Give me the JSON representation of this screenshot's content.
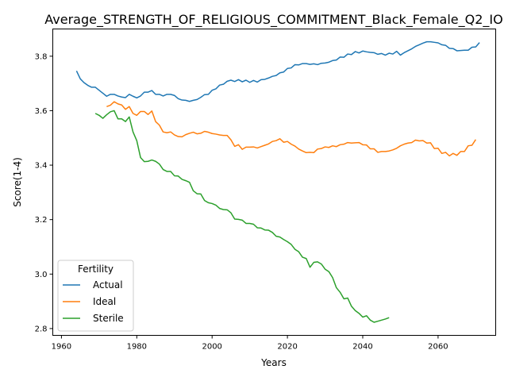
{
  "chart_data": {
    "type": "line",
    "title": "Average_STRENGTH_OF_RELIGIOUS_COMMITMENT_Black_Female_Q2_IO",
    "xlabel": "Years",
    "ylabel": "Score(1-4)",
    "xlim": [
      1957.7,
      2075.3
    ],
    "ylim": [
      2.775,
      3.9
    ],
    "xticks": [
      1960,
      1980,
      2000,
      2020,
      2040,
      2060
    ],
    "yticks": [
      2.8,
      3.0,
      3.2,
      3.4,
      3.6,
      3.8
    ],
    "xtick_labels": [
      "1960",
      "1980",
      "2000",
      "2020",
      "2040",
      "2060"
    ],
    "ytick_labels": [
      "2.8",
      "3.0",
      "3.2",
      "3.4",
      "3.6",
      "3.8"
    ],
    "grid": false,
    "legend": {
      "title": "Fertility",
      "placement": "lower-left"
    },
    "series": [
      {
        "name": "Actual",
        "color": "#1f77b4",
        "points": [
          [
            1964,
            3.746
          ],
          [
            1965,
            3.717
          ],
          [
            1966,
            3.703
          ],
          [
            1967,
            3.693
          ],
          [
            1968,
            3.686
          ],
          [
            1969,
            3.686
          ],
          [
            1970,
            3.675
          ],
          [
            1971,
            3.664
          ],
          [
            1972,
            3.653
          ],
          [
            1973,
            3.66
          ],
          [
            1974,
            3.66
          ],
          [
            1975,
            3.654
          ],
          [
            1976,
            3.65
          ],
          [
            1977,
            3.648
          ],
          [
            1978,
            3.66
          ],
          [
            1979,
            3.653
          ],
          [
            1980,
            3.647
          ],
          [
            1981,
            3.654
          ],
          [
            1982,
            3.668
          ],
          [
            1983,
            3.668
          ],
          [
            1984,
            3.674
          ],
          [
            1985,
            3.66
          ],
          [
            1986,
            3.66
          ],
          [
            1987,
            3.654
          ],
          [
            1988,
            3.66
          ],
          [
            1989,
            3.66
          ],
          [
            1990,
            3.656
          ],
          [
            1991,
            3.644
          ],
          [
            1992,
            3.639
          ],
          [
            1993,
            3.638
          ],
          [
            1994,
            3.634
          ],
          [
            1995,
            3.638
          ],
          [
            1996,
            3.641
          ],
          [
            1997,
            3.649
          ],
          [
            1998,
            3.659
          ],
          [
            1999,
            3.66
          ],
          [
            2000,
            3.675
          ],
          [
            2001,
            3.68
          ],
          [
            2002,
            3.694
          ],
          [
            2003,
            3.697
          ],
          [
            2004,
            3.708
          ],
          [
            2005,
            3.712
          ],
          [
            2006,
            3.707
          ],
          [
            2007,
            3.714
          ],
          [
            2008,
            3.706
          ],
          [
            2009,
            3.712
          ],
          [
            2010,
            3.704
          ],
          [
            2011,
            3.711
          ],
          [
            2012,
            3.705
          ],
          [
            2013,
            3.714
          ],
          [
            2014,
            3.715
          ],
          [
            2015,
            3.72
          ],
          [
            2016,
            3.726
          ],
          [
            2017,
            3.729
          ],
          [
            2018,
            3.739
          ],
          [
            2019,
            3.742
          ],
          [
            2020,
            3.755
          ],
          [
            2021,
            3.757
          ],
          [
            2022,
            3.769
          ],
          [
            2023,
            3.768
          ],
          [
            2024,
            3.773
          ],
          [
            2025,
            3.773
          ],
          [
            2026,
            3.77
          ],
          [
            2027,
            3.772
          ],
          [
            2028,
            3.769
          ],
          [
            2029,
            3.774
          ],
          [
            2030,
            3.775
          ],
          [
            2031,
            3.778
          ],
          [
            2032,
            3.784
          ],
          [
            2033,
            3.786
          ],
          [
            2034,
            3.797
          ],
          [
            2035,
            3.796
          ],
          [
            2036,
            3.808
          ],
          [
            2037,
            3.806
          ],
          [
            2038,
            3.817
          ],
          [
            2039,
            3.812
          ],
          [
            2040,
            3.819
          ],
          [
            2041,
            3.816
          ],
          [
            2042,
            3.814
          ],
          [
            2043,
            3.813
          ],
          [
            2044,
            3.807
          ],
          [
            2045,
            3.81
          ],
          [
            2046,
            3.804
          ],
          [
            2047,
            3.811
          ],
          [
            2048,
            3.808
          ],
          [
            2049,
            3.818
          ],
          [
            2050,
            3.804
          ],
          [
            2051,
            3.813
          ],
          [
            2052,
            3.82
          ],
          [
            2053,
            3.827
          ],
          [
            2054,
            3.836
          ],
          [
            2055,
            3.842
          ],
          [
            2056,
            3.848
          ],
          [
            2057,
            3.853
          ],
          [
            2058,
            3.853
          ],
          [
            2059,
            3.851
          ],
          [
            2060,
            3.849
          ],
          [
            2061,
            3.842
          ],
          [
            2062,
            3.84
          ],
          [
            2063,
            3.829
          ],
          [
            2064,
            3.828
          ],
          [
            2065,
            3.82
          ],
          [
            2066,
            3.821
          ],
          [
            2067,
            3.822
          ],
          [
            2068,
            3.822
          ],
          [
            2069,
            3.833
          ],
          [
            2070,
            3.834
          ],
          [
            2071,
            3.85
          ]
        ]
      },
      {
        "name": "Ideal",
        "color": "#ff7f0e",
        "points": [
          [
            1972,
            3.615
          ],
          [
            1973,
            3.62
          ],
          [
            1974,
            3.633
          ],
          [
            1975,
            3.625
          ],
          [
            1976,
            3.621
          ],
          [
            1977,
            3.605
          ],
          [
            1978,
            3.615
          ],
          [
            1979,
            3.59
          ],
          [
            1980,
            3.583
          ],
          [
            1981,
            3.597
          ],
          [
            1982,
            3.597
          ],
          [
            1983,
            3.586
          ],
          [
            1984,
            3.599
          ],
          [
            1985,
            3.56
          ],
          [
            1986,
            3.547
          ],
          [
            1987,
            3.522
          ],
          [
            1988,
            3.519
          ],
          [
            1989,
            3.522
          ],
          [
            1990,
            3.511
          ],
          [
            1991,
            3.505
          ],
          [
            1992,
            3.504
          ],
          [
            1993,
            3.512
          ],
          [
            1994,
            3.517
          ],
          [
            1995,
            3.521
          ],
          [
            1996,
            3.515
          ],
          [
            1997,
            3.517
          ],
          [
            1998,
            3.524
          ],
          [
            1999,
            3.521
          ],
          [
            2000,
            3.516
          ],
          [
            2001,
            3.514
          ],
          [
            2002,
            3.511
          ],
          [
            2003,
            3.509
          ],
          [
            2004,
            3.509
          ],
          [
            2005,
            3.493
          ],
          [
            2006,
            3.469
          ],
          [
            2007,
            3.475
          ],
          [
            2008,
            3.458
          ],
          [
            2009,
            3.466
          ],
          [
            2010,
            3.466
          ],
          [
            2011,
            3.467
          ],
          [
            2012,
            3.463
          ],
          [
            2013,
            3.468
          ],
          [
            2014,
            3.473
          ],
          [
            2015,
            3.478
          ],
          [
            2016,
            3.487
          ],
          [
            2017,
            3.49
          ],
          [
            2018,
            3.497
          ],
          [
            2019,
            3.484
          ],
          [
            2020,
            3.487
          ],
          [
            2021,
            3.477
          ],
          [
            2022,
            3.47
          ],
          [
            2023,
            3.459
          ],
          [
            2024,
            3.452
          ],
          [
            2025,
            3.446
          ],
          [
            2026,
            3.447
          ],
          [
            2027,
            3.446
          ],
          [
            2028,
            3.459
          ],
          [
            2029,
            3.461
          ],
          [
            2030,
            3.467
          ],
          [
            2031,
            3.465
          ],
          [
            2032,
            3.471
          ],
          [
            2033,
            3.468
          ],
          [
            2034,
            3.475
          ],
          [
            2035,
            3.477
          ],
          [
            2036,
            3.483
          ],
          [
            2037,
            3.481
          ],
          [
            2038,
            3.482
          ],
          [
            2039,
            3.483
          ],
          [
            2040,
            3.475
          ],
          [
            2041,
            3.474
          ],
          [
            2042,
            3.46
          ],
          [
            2043,
            3.46
          ],
          [
            2044,
            3.447
          ],
          [
            2045,
            3.45
          ],
          [
            2046,
            3.45
          ],
          [
            2047,
            3.452
          ],
          [
            2048,
            3.456
          ],
          [
            2049,
            3.462
          ],
          [
            2050,
            3.471
          ],
          [
            2051,
            3.477
          ],
          [
            2052,
            3.481
          ],
          [
            2053,
            3.483
          ],
          [
            2054,
            3.492
          ],
          [
            2055,
            3.489
          ],
          [
            2056,
            3.49
          ],
          [
            2057,
            3.481
          ],
          [
            2058,
            3.482
          ],
          [
            2059,
            3.461
          ],
          [
            2060,
            3.462
          ],
          [
            2061,
            3.443
          ],
          [
            2062,
            3.447
          ],
          [
            2063,
            3.434
          ],
          [
            2064,
            3.443
          ],
          [
            2065,
            3.436
          ],
          [
            2066,
            3.45
          ],
          [
            2067,
            3.45
          ],
          [
            2068,
            3.471
          ],
          [
            2069,
            3.473
          ],
          [
            2070,
            3.494
          ]
        ]
      },
      {
        "name": "Sterile",
        "color": "#2ca02c",
        "points": [
          [
            1969,
            3.59
          ],
          [
            1970,
            3.583
          ],
          [
            1971,
            3.572
          ],
          [
            1972,
            3.585
          ],
          [
            1973,
            3.596
          ],
          [
            1974,
            3.6
          ],
          [
            1975,
            3.57
          ],
          [
            1976,
            3.57
          ],
          [
            1977,
            3.56
          ],
          [
            1978,
            3.577
          ],
          [
            1979,
            3.522
          ],
          [
            1980,
            3.49
          ],
          [
            1981,
            3.428
          ],
          [
            1982,
            3.413
          ],
          [
            1983,
            3.414
          ],
          [
            1984,
            3.419
          ],
          [
            1985,
            3.414
          ],
          [
            1986,
            3.404
          ],
          [
            1987,
            3.384
          ],
          [
            1988,
            3.377
          ],
          [
            1989,
            3.377
          ],
          [
            1990,
            3.361
          ],
          [
            1991,
            3.36
          ],
          [
            1992,
            3.348
          ],
          [
            1993,
            3.343
          ],
          [
            1994,
            3.337
          ],
          [
            1995,
            3.306
          ],
          [
            1996,
            3.295
          ],
          [
            1997,
            3.294
          ],
          [
            1998,
            3.27
          ],
          [
            1999,
            3.262
          ],
          [
            2000,
            3.259
          ],
          [
            2001,
            3.253
          ],
          [
            2002,
            3.241
          ],
          [
            2003,
            3.237
          ],
          [
            2004,
            3.236
          ],
          [
            2005,
            3.225
          ],
          [
            2006,
            3.202
          ],
          [
            2007,
            3.201
          ],
          [
            2008,
            3.198
          ],
          [
            2009,
            3.186
          ],
          [
            2010,
            3.186
          ],
          [
            2011,
            3.183
          ],
          [
            2012,
            3.17
          ],
          [
            2013,
            3.169
          ],
          [
            2014,
            3.162
          ],
          [
            2015,
            3.161
          ],
          [
            2016,
            3.153
          ],
          [
            2017,
            3.139
          ],
          [
            2018,
            3.136
          ],
          [
            2019,
            3.127
          ],
          [
            2020,
            3.119
          ],
          [
            2021,
            3.109
          ],
          [
            2022,
            3.091
          ],
          [
            2023,
            3.082
          ],
          [
            2024,
            3.062
          ],
          [
            2025,
            3.057
          ],
          [
            2026,
            3.025
          ],
          [
            2027,
            3.043
          ],
          [
            2028,
            3.045
          ],
          [
            2029,
            3.037
          ],
          [
            2030,
            3.018
          ],
          [
            2031,
            3.009
          ],
          [
            2032,
            2.987
          ],
          [
            2033,
            2.95
          ],
          [
            2034,
            2.933
          ],
          [
            2035,
            2.909
          ],
          [
            2036,
            2.912
          ],
          [
            2037,
            2.882
          ],
          [
            2038,
            2.866
          ],
          [
            2039,
            2.856
          ],
          [
            2040,
            2.842
          ],
          [
            2041,
            2.847
          ],
          [
            2042,
            2.831
          ],
          [
            2043,
            2.823
          ],
          [
            2044,
            2.827
          ],
          [
            2045,
            2.831
          ],
          [
            2046,
            2.835
          ],
          [
            2047,
            2.84
          ]
        ]
      }
    ]
  }
}
